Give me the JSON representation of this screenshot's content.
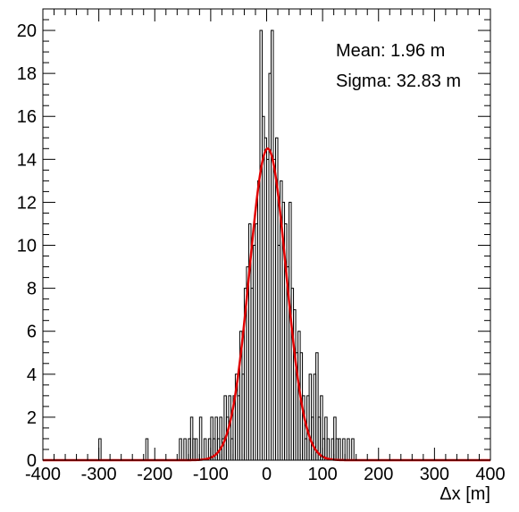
{
  "chart_data": {
    "type": "bar",
    "subtype": "histogram_with_gaussian_fit",
    "title": "",
    "xlabel": "Δx [m]",
    "ylabel": "",
    "xlim": [
      -400,
      400
    ],
    "ylim": [
      0,
      21
    ],
    "x_ticks": [
      -400,
      -300,
      -200,
      -100,
      0,
      100,
      200,
      300,
      400
    ],
    "y_ticks": [
      0,
      2,
      4,
      6,
      8,
      10,
      12,
      14,
      16,
      18,
      20
    ],
    "grid": false,
    "histogram": {
      "bin_width": 4,
      "color": "#000000",
      "bins": [
        {
          "x": -300,
          "y": 1
        },
        {
          "x": -216,
          "y": 1
        },
        {
          "x": -156,
          "y": 1
        },
        {
          "x": -148,
          "y": 1
        },
        {
          "x": -140,
          "y": 1
        },
        {
          "x": -136,
          "y": 2
        },
        {
          "x": -132,
          "y": 1
        },
        {
          "x": -128,
          "y": 1
        },
        {
          "x": -120,
          "y": 2
        },
        {
          "x": -112,
          "y": 1
        },
        {
          "x": -104,
          "y": 1
        },
        {
          "x": -100,
          "y": 2
        },
        {
          "x": -96,
          "y": 1
        },
        {
          "x": -92,
          "y": 2
        },
        {
          "x": -88,
          "y": 1
        },
        {
          "x": -84,
          "y": 2
        },
        {
          "x": -80,
          "y": 1
        },
        {
          "x": -76,
          "y": 3
        },
        {
          "x": -72,
          "y": 2
        },
        {
          "x": -68,
          "y": 3
        },
        {
          "x": -64,
          "y": 1
        },
        {
          "x": -60,
          "y": 3
        },
        {
          "x": -56,
          "y": 4
        },
        {
          "x": -52,
          "y": 3
        },
        {
          "x": -48,
          "y": 6
        },
        {
          "x": -44,
          "y": 4
        },
        {
          "x": -40,
          "y": 8
        },
        {
          "x": -36,
          "y": 9
        },
        {
          "x": -32,
          "y": 11
        },
        {
          "x": -28,
          "y": 8
        },
        {
          "x": -24,
          "y": 10
        },
        {
          "x": -20,
          "y": 11
        },
        {
          "x": -16,
          "y": 13
        },
        {
          "x": -12,
          "y": 20
        },
        {
          "x": -8,
          "y": 16
        },
        {
          "x": -4,
          "y": 15
        },
        {
          "x": 0,
          "y": 14
        },
        {
          "x": 4,
          "y": 18
        },
        {
          "x": 8,
          "y": 20
        },
        {
          "x": 12,
          "y": 14
        },
        {
          "x": 16,
          "y": 15
        },
        {
          "x": 20,
          "y": 10
        },
        {
          "x": 24,
          "y": 13
        },
        {
          "x": 28,
          "y": 12
        },
        {
          "x": 32,
          "y": 11
        },
        {
          "x": 36,
          "y": 9
        },
        {
          "x": 40,
          "y": 12
        },
        {
          "x": 44,
          "y": 8
        },
        {
          "x": 48,
          "y": 7
        },
        {
          "x": 52,
          "y": 5
        },
        {
          "x": 56,
          "y": 6
        },
        {
          "x": 60,
          "y": 5
        },
        {
          "x": 64,
          "y": 3
        },
        {
          "x": 68,
          "y": 1
        },
        {
          "x": 72,
          "y": 3
        },
        {
          "x": 76,
          "y": 4
        },
        {
          "x": 80,
          "y": 2
        },
        {
          "x": 84,
          "y": 4
        },
        {
          "x": 88,
          "y": 5
        },
        {
          "x": 92,
          "y": 2
        },
        {
          "x": 96,
          "y": 3
        },
        {
          "x": 100,
          "y": 1
        },
        {
          "x": 104,
          "y": 2
        },
        {
          "x": 108,
          "y": 1
        },
        {
          "x": 116,
          "y": 1
        },
        {
          "x": 120,
          "y": 2
        },
        {
          "x": 124,
          "y": 1
        },
        {
          "x": 128,
          "y": 1
        },
        {
          "x": 136,
          "y": 1
        },
        {
          "x": 144,
          "y": 1
        },
        {
          "x": 152,
          "y": 1
        }
      ]
    },
    "fit": {
      "type": "gaussian",
      "color": "#e00000",
      "amplitude": 14.5,
      "mean": 1.96,
      "sigma": 32.83
    },
    "annotations": {
      "mean_text": "Mean: 1.96 m",
      "sigma_text": "Sigma: 32.83 m"
    }
  }
}
